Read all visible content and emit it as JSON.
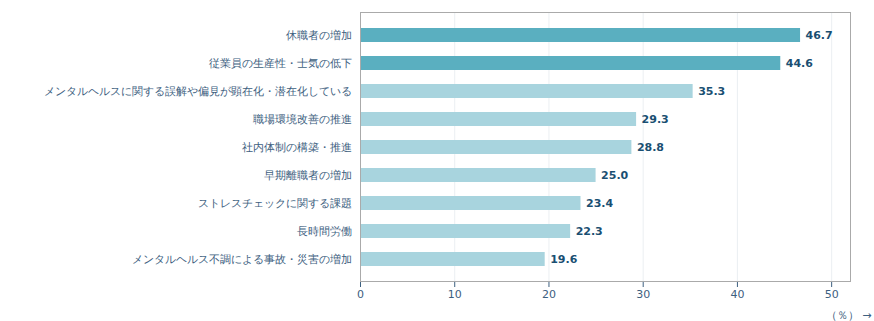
{
  "chart_data": {
    "type": "bar",
    "orientation": "horizontal",
    "categories": [
      "メンタルヘルス不調による事故・災害の増加",
      "長時間労働",
      "ストレスチェックに関する課題",
      "早期離職者の増加",
      "社内体制の構築・推進",
      "職場環境改善の推進",
      "メンタルヘルスに関する誤解や偏見が顕在化・潜在化している",
      "従業員の生産性・士気の低下",
      "休職者の増加"
    ],
    "values": [
      19.6,
      22.3,
      23.4,
      25.0,
      28.8,
      29.3,
      35.3,
      44.6,
      46.7
    ],
    "value_labels": [
      "19.6",
      "22.3",
      "23.4",
      "25.0",
      "28.8",
      "29.3",
      "35.3",
      "44.6",
      "46.7"
    ],
    "colors": [
      "#a8d4de",
      "#a8d4de",
      "#a8d4de",
      "#a8d4de",
      "#a8d4de",
      "#a8d4de",
      "#a8d4de",
      "#5aafc0",
      "#5aafc0"
    ],
    "xlabel": "（％）",
    "xlim": [
      0,
      52
    ],
    "xticks": [
      0,
      10,
      20,
      30,
      40,
      50
    ],
    "grid": true,
    "data_labels": true
  }
}
